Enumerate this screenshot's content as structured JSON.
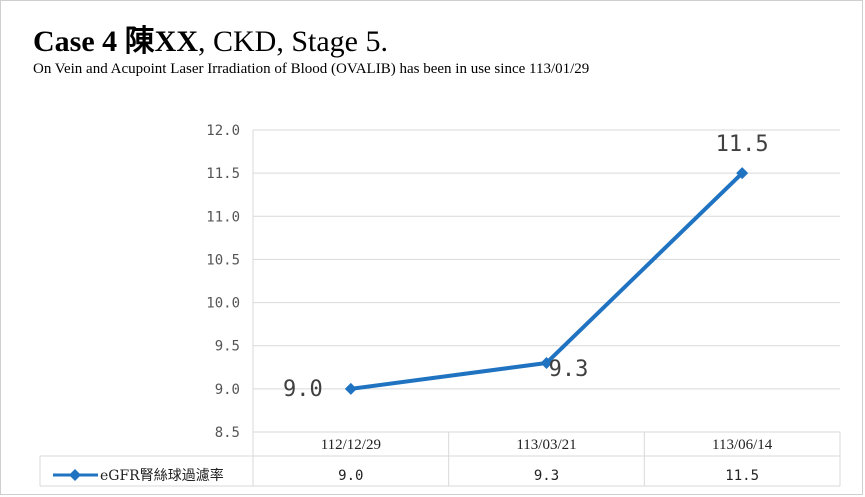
{
  "header": {
    "title_case": "Case 4",
    "title_name": "陳XX",
    "title_rest": ", CKD, Stage 5.",
    "subtitle": "On Vein and Acupoint Laser Irradiation of Blood  (OVALIB) has been in use since 113/01/29"
  },
  "chart_data": {
    "type": "line",
    "categories": [
      "112/12/29",
      "113/03/21",
      "113/06/14"
    ],
    "series": [
      {
        "name": "eGFR腎絲球過濾率",
        "values": [
          9.0,
          9.3,
          11.5
        ],
        "labels": [
          "9.0",
          "9.3",
          "11.5"
        ]
      }
    ],
    "ylim": [
      8.5,
      12.0
    ],
    "yticks": [
      "8.5",
      "9.0",
      "9.5",
      "10.0",
      "10.5",
      "11.0",
      "11.5",
      "12.0"
    ],
    "grid": true,
    "data_table": true,
    "line_color": "#1f73c1",
    "grid_color": "#d9d9d9"
  }
}
